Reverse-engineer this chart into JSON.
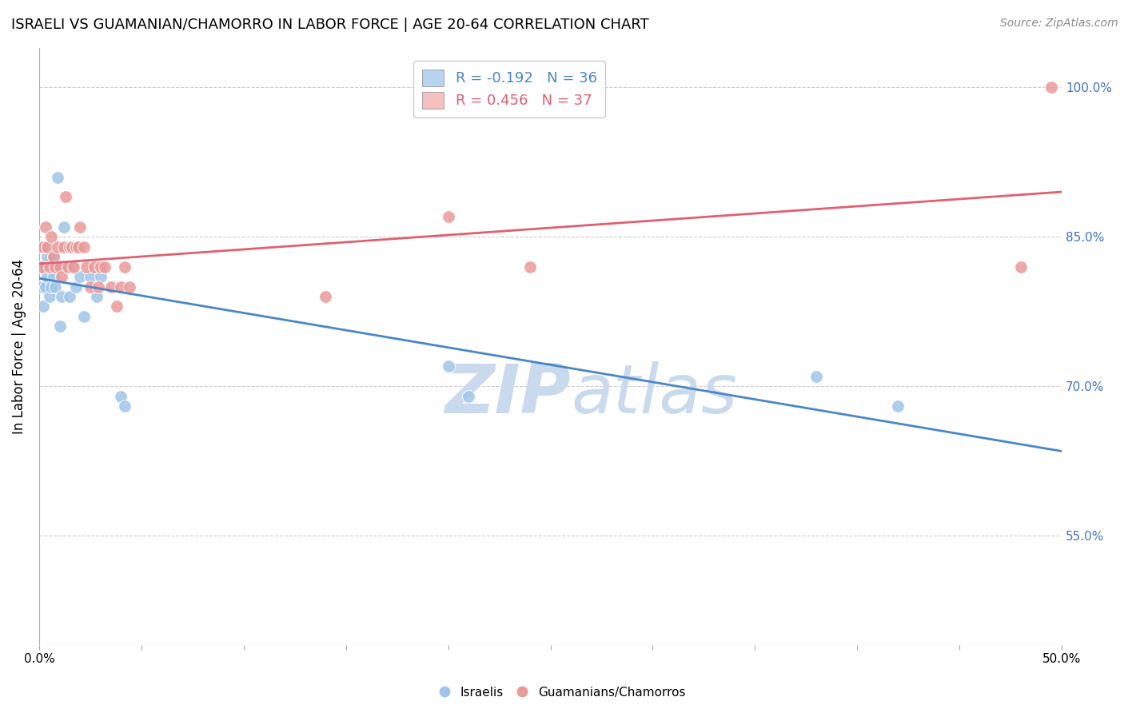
{
  "title": "ISRAELI VS GUAMANIAN/CHAMORRO IN LABOR FORCE | AGE 20-64 CORRELATION CHART",
  "source": "Source: ZipAtlas.com",
  "ylabel": "In Labor Force | Age 20-64",
  "xlim": [
    0.0,
    0.5
  ],
  "ylim": [
    0.44,
    1.04
  ],
  "yticks": [
    0.55,
    0.7,
    0.85,
    1.0
  ],
  "ytick_labels": [
    "55.0%",
    "70.0%",
    "85.0%",
    "100.0%"
  ],
  "xticks": [
    0.0,
    0.05,
    0.1,
    0.15,
    0.2,
    0.25,
    0.3,
    0.35,
    0.4,
    0.45,
    0.5
  ],
  "xtick_labels": [
    "0.0%",
    "",
    "",
    "",
    "",
    "",
    "",
    "",
    "",
    "",
    "50.0%"
  ],
  "israeli_R": -0.192,
  "israeli_N": 36,
  "guamanian_R": 0.456,
  "guamanian_N": 37,
  "israeli_color": "#9fc5e8",
  "guamanian_color": "#ea9999",
  "line_israeli_color": "#4a86c8",
  "line_guamanian_color": "#e06070",
  "watermark_color": "#c9d9ee",
  "background_color": "#ffffff",
  "israeli_x": [
    0.001,
    0.001,
    0.002,
    0.002,
    0.003,
    0.003,
    0.004,
    0.004,
    0.005,
    0.005,
    0.006,
    0.006,
    0.007,
    0.007,
    0.008,
    0.008,
    0.009,
    0.01,
    0.011,
    0.012,
    0.013,
    0.014,
    0.015,
    0.016,
    0.018,
    0.02,
    0.022,
    0.025,
    0.028,
    0.03,
    0.04,
    0.042,
    0.2,
    0.21,
    0.38,
    0.42
  ],
  "israeli_y": [
    0.82,
    0.8,
    0.84,
    0.78,
    0.82,
    0.8,
    0.83,
    0.81,
    0.82,
    0.79,
    0.82,
    0.8,
    0.81,
    0.83,
    0.8,
    0.82,
    0.91,
    0.76,
    0.79,
    0.86,
    0.82,
    0.84,
    0.79,
    0.82,
    0.8,
    0.81,
    0.77,
    0.81,
    0.79,
    0.81,
    0.69,
    0.68,
    0.72,
    0.69,
    0.71,
    0.68
  ],
  "guamanian_x": [
    0.001,
    0.002,
    0.003,
    0.004,
    0.005,
    0.006,
    0.007,
    0.008,
    0.009,
    0.01,
    0.011,
    0.012,
    0.013,
    0.014,
    0.015,
    0.016,
    0.017,
    0.018,
    0.019,
    0.02,
    0.022,
    0.023,
    0.025,
    0.027,
    0.029,
    0.03,
    0.032,
    0.035,
    0.038,
    0.04,
    0.042,
    0.044,
    0.14,
    0.2,
    0.24,
    0.48,
    0.495
  ],
  "guamanian_y": [
    0.82,
    0.84,
    0.86,
    0.84,
    0.82,
    0.85,
    0.83,
    0.82,
    0.84,
    0.82,
    0.81,
    0.84,
    0.89,
    0.82,
    0.84,
    0.84,
    0.82,
    0.84,
    0.84,
    0.86,
    0.84,
    0.82,
    0.8,
    0.82,
    0.8,
    0.82,
    0.82,
    0.8,
    0.78,
    0.8,
    0.82,
    0.8,
    0.79,
    0.87,
    0.82,
    0.82,
    1.0
  ]
}
